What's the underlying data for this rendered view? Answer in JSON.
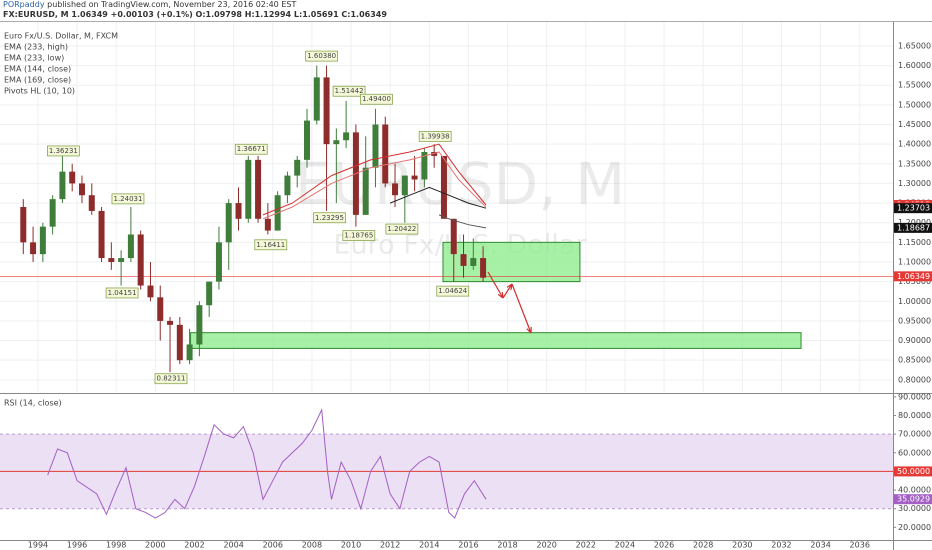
{
  "header": {
    "author": "PORpaddy",
    "published": "published on TradingView.com, November 23, 2016 02:40 EST",
    "quote": "FX:EURUSD, M 1.06349 +0.00103 (+0.1%) O:1.09798 H:1.12994 L:1.05691 C:1.06349"
  },
  "chart_data": [
    {
      "type": "candlestick",
      "title": "Euro Fx/U.S. Dollar, M, FXCM",
      "watermark": "EURUSD, M",
      "watermark_subtitle": "Euro Fx/U.S. Dollar",
      "up_color": "#3f7d3a",
      "down_color": "#8e2b2b",
      "x": [
        1993.25,
        1993.75,
        1994.25,
        1994.75,
        1995.25,
        1995.75,
        1996.25,
        1996.75,
        1997.25,
        1997.75,
        1998.25,
        1998.75,
        1999.25,
        1999.75,
        2000.25,
        2000.75,
        2001.25,
        2001.75,
        2002.25,
        2002.75,
        2003.25,
        2003.75,
        2004.25,
        2004.75,
        2005.25,
        2005.75,
        2006.25,
        2006.75,
        2007.25,
        2007.75,
        2008.25,
        2008.75,
        2009.25,
        2009.75,
        2010.25,
        2010.75,
        2011.25,
        2011.75,
        2012.25,
        2012.75,
        2013.25,
        2013.75,
        2014.25,
        2014.75,
        2015.25,
        2015.75,
        2016.25,
        2016.75
      ],
      "open": [
        1.24,
        1.15,
        1.12,
        1.19,
        1.26,
        1.33,
        1.3,
        1.27,
        1.23,
        1.11,
        1.1,
        1.11,
        1.17,
        1.04,
        1.01,
        0.95,
        0.94,
        0.85,
        0.89,
        0.99,
        1.05,
        1.15,
        1.25,
        1.21,
        1.36,
        1.21,
        1.18,
        1.27,
        1.32,
        1.36,
        1.46,
        1.57,
        1.4,
        1.41,
        1.43,
        1.22,
        1.34,
        1.45,
        1.3,
        1.27,
        1.32,
        1.31,
        1.38,
        1.37,
        1.21,
        1.12,
        1.09,
        1.11
      ],
      "high": [
        1.26,
        1.19,
        1.2,
        1.27,
        1.38,
        1.35,
        1.32,
        1.3,
        1.24,
        1.15,
        1.13,
        1.24,
        1.18,
        1.1,
        1.04,
        0.96,
        0.96,
        0.93,
        1.0,
        1.05,
        1.19,
        1.26,
        1.29,
        1.37,
        1.37,
        1.25,
        1.28,
        1.33,
        1.37,
        1.49,
        1.6,
        1.6,
        1.44,
        1.51,
        1.45,
        1.42,
        1.49,
        1.47,
        1.35,
        1.32,
        1.37,
        1.39,
        1.4,
        1.37,
        1.21,
        1.17,
        1.16,
        1.14
      ],
      "low": [
        1.12,
        1.1,
        1.1,
        1.17,
        1.25,
        1.28,
        1.25,
        1.22,
        1.1,
        1.08,
        1.04,
        1.1,
        1.03,
        1.0,
        0.9,
        0.82,
        0.84,
        0.84,
        0.86,
        0.96,
        1.03,
        1.08,
        1.18,
        1.2,
        1.2,
        1.17,
        1.18,
        1.25,
        1.29,
        1.34,
        1.45,
        1.23,
        1.25,
        1.39,
        1.19,
        1.22,
        1.29,
        1.29,
        1.24,
        1.2,
        1.28,
        1.29,
        1.34,
        1.21,
        1.05,
        1.06,
        1.08,
        1.05
      ],
      "close": [
        1.15,
        1.12,
        1.19,
        1.26,
        1.33,
        1.3,
        1.27,
        1.23,
        1.11,
        1.1,
        1.11,
        1.17,
        1.04,
        1.01,
        0.95,
        0.94,
        0.85,
        0.89,
        0.99,
        1.05,
        1.15,
        1.25,
        1.21,
        1.36,
        1.21,
        1.18,
        1.27,
        1.32,
        1.36,
        1.46,
        1.57,
        1.4,
        1.41,
        1.43,
        1.22,
        1.34,
        1.45,
        1.3,
        1.27,
        1.32,
        1.31,
        1.38,
        1.37,
        1.21,
        1.12,
        1.09,
        1.11,
        1.06
      ],
      "series": [
        {
          "name": "EMA (233, high)",
          "color": "#d32f2f",
          "x": [
            2005.5,
            2007,
            2009,
            2011,
            2013,
            2014.5,
            2015.5,
            2016.9
          ],
          "values": [
            1.22,
            1.25,
            1.32,
            1.36,
            1.38,
            1.4,
            1.33,
            1.24518
          ]
        },
        {
          "name": "EMA (233, low)",
          "color": "#e57373",
          "x": [
            2005.5,
            2007,
            2009,
            2011,
            2013,
            2014.5,
            2015.5,
            2016.9
          ],
          "values": [
            1.21,
            1.24,
            1.3,
            1.34,
            1.36,
            1.38,
            1.31,
            1.23939
          ]
        },
        {
          "name": "EMA (144, close)",
          "color": "#222222",
          "x": [
            2012,
            2013,
            2014,
            2015,
            2016,
            2016.9
          ],
          "values": [
            1.25,
            1.27,
            1.29,
            1.27,
            1.25,
            1.23703
          ]
        },
        {
          "name": "EMA (169, close)",
          "color": "#555555",
          "x": [
            2014.5,
            2015,
            2016,
            2016.9
          ],
          "values": [
            1.22,
            1.21,
            1.195,
            1.18687
          ]
        }
      ],
      "indicator": "Pivots HL (10, 10)",
      "pivots": [
        {
          "x": 1995.3,
          "value": 1.36231,
          "label": "1.36231"
        },
        {
          "x": 1998.6,
          "value": 1.24031,
          "label": "1.24031"
        },
        {
          "x": 1998.3,
          "value": 1.04151,
          "label": "1.04151"
        },
        {
          "x": 2000.8,
          "value": 0.82311,
          "label": "0.82311"
        },
        {
          "x": 2004.9,
          "value": 1.36671,
          "label": "1.36671"
        },
        {
          "x": 2005.9,
          "value": 1.16411,
          "label": "1.16411"
        },
        {
          "x": 2008.5,
          "value": 1.6038,
          "label": "1.60380"
        },
        {
          "x": 2008.9,
          "value": 1.23295,
          "label": "1.23295"
        },
        {
          "x": 2009.9,
          "value": 1.51442,
          "label": "1.51442"
        },
        {
          "x": 2010.4,
          "value": 1.18765,
          "label": "1.18765"
        },
        {
          "x": 2011.3,
          "value": 1.494,
          "label": "1.49400"
        },
        {
          "x": 2012.6,
          "value": 1.20422,
          "label": "1.20422"
        },
        {
          "x": 2014.3,
          "value": 1.39938,
          "label": "1.39938"
        },
        {
          "x": 2015.2,
          "value": 1.04624,
          "label": "1.04624"
        }
      ],
      "zones": [
        {
          "x": [
            2014.7,
            2021.7
          ],
          "y": [
            1.05,
            1.15
          ],
          "color": "#90ee90"
        },
        {
          "x": [
            2001.8,
            2033.0
          ],
          "y": [
            0.88,
            0.92
          ],
          "color": "#90ee90"
        }
      ],
      "last_price": {
        "value": 1.06349,
        "color": "#e53935"
      },
      "price_markers": [
        {
          "value": 1.24518,
          "color": "#e53935"
        },
        {
          "value": 1.23939,
          "color": "#e53935"
        },
        {
          "value": 1.23703,
          "color": "#111111"
        },
        {
          "value": 1.18687,
          "color": "#111111"
        }
      ],
      "xlim": [
        1992.06,
        2037.7
      ],
      "xticks": [
        1994,
        1996,
        1998,
        2000,
        2002,
        2004,
        2006,
        2008,
        2010,
        2012,
        2014,
        2016,
        2018,
        2020,
        2022,
        2024,
        2026,
        2028,
        2030,
        2032,
        2034,
        2036
      ],
      "ylim": [
        0.769,
        1.711
      ],
      "yticks": [
        {
          "value": 0.8,
          "label": "0.80000"
        },
        {
          "value": 0.85,
          "label": "0.85000"
        },
        {
          "value": 0.9,
          "label": "0.90000"
        },
        {
          "value": 0.95,
          "label": "0.95000"
        },
        {
          "value": 1.0,
          "label": "1.00000"
        },
        {
          "value": 1.05,
          "label": "1.05000"
        },
        {
          "value": 1.1,
          "label": "1.10000"
        },
        {
          "value": 1.15,
          "label": "1.15000"
        },
        {
          "value": 1.2,
          "label": "1.20000"
        },
        {
          "value": 1.25,
          "label": "1.25000"
        },
        {
          "value": 1.3,
          "label": "1.30000"
        },
        {
          "value": 1.35,
          "label": "1.35000"
        },
        {
          "value": 1.4,
          "label": "1.40000"
        },
        {
          "value": 1.45,
          "label": "1.45000"
        },
        {
          "value": 1.5,
          "label": "1.50000"
        },
        {
          "value": 1.55,
          "label": "1.55000"
        },
        {
          "value": 1.6,
          "label": "1.60000"
        },
        {
          "value": 1.65,
          "label": "1.65000"
        }
      ],
      "grid": true
    },
    {
      "type": "line",
      "title": "RSI (14, close)",
      "color": "#a35fc4",
      "x": [
        1994.5,
        1995,
        1995.5,
        1996,
        1997,
        1997.5,
        1998,
        1998.5,
        1999,
        1999.5,
        2000,
        2000.5,
        2001,
        2001.5,
        2002,
        2002.5,
        2003,
        2003.5,
        2004,
        2004.5,
        2005,
        2005.5,
        2006,
        2006.5,
        2007,
        2007.5,
        2008,
        2008.5,
        2008.8,
        2009,
        2009.5,
        2010,
        2010.5,
        2011,
        2011.5,
        2012,
        2012.5,
        2013,
        2013.5,
        2014,
        2014.5,
        2015,
        2015.3,
        2015.8,
        2016.3,
        2016.9
      ],
      "values": [
        48,
        62,
        60,
        45,
        38,
        27,
        40,
        52,
        30,
        28,
        25,
        28,
        35,
        30,
        42,
        58,
        75,
        70,
        68,
        74,
        60,
        35,
        45,
        55,
        60,
        65,
        72,
        83,
        50,
        35,
        55,
        45,
        30,
        50,
        58,
        38,
        30,
        50,
        55,
        58,
        55,
        28,
        25,
        38,
        45,
        35.0929
      ],
      "last": {
        "value": 35.0929,
        "color": "#a35fc4"
      },
      "band": [
        30,
        70
      ],
      "band_color": "#e3d3f0",
      "midline": {
        "value": 50,
        "label": "50.0000",
        "color": "#e53935"
      },
      "xlim": [
        1992.06,
        2037.7
      ],
      "ylim": [
        13.2,
        91
      ],
      "yticks": [
        {
          "value": 20,
          "label": "20.0000"
        },
        {
          "value": 30,
          "label": "30.0000"
        },
        {
          "value": 40,
          "label": "40.0000"
        },
        {
          "value": 60,
          "label": "60.0000"
        },
        {
          "value": 70,
          "label": "70.0000"
        },
        {
          "value": 80,
          "label": "80.0000"
        },
        {
          "value": 90,
          "label": "90.0000"
        }
      ]
    }
  ]
}
